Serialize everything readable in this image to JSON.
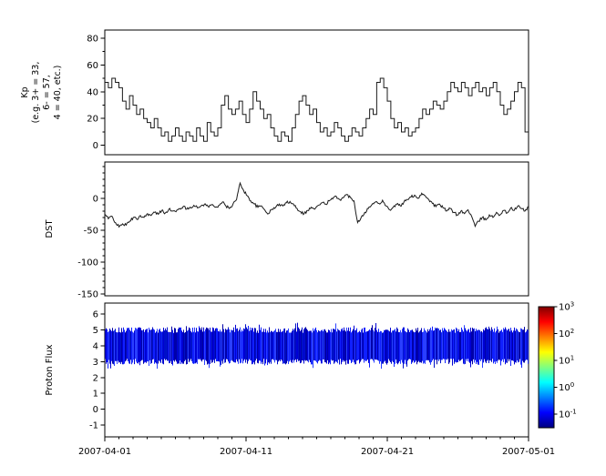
{
  "figure": {
    "background": "#ffffff",
    "axis_color": "#000000",
    "line_color": "#1a1a1a"
  },
  "x_axis": {
    "tick_labels": [
      "2007-04-01",
      "2007-04-11",
      "2007-04-21",
      "2007-05-01"
    ],
    "tick_positions_days": [
      0,
      10,
      20,
      30
    ],
    "span_days": 30,
    "minor_tick_interval_days": 1
  },
  "chart_data": [
    {
      "id": "kp",
      "type": "line",
      "style": "step",
      "ylabel_lines": [
        "Kp",
        "(e.g. 3+ = 33,",
        "6- = 57,",
        "4 = 40, etc.)"
      ],
      "yticks": [
        0,
        20,
        40,
        60,
        80
      ],
      "minor_ytick_interval": 10,
      "ylim": [
        -7,
        86
      ],
      "x_span_days": 30,
      "line_color": "#1a1a1a",
      "values": [
        47,
        43,
        50,
        47,
        43,
        33,
        27,
        37,
        30,
        23,
        27,
        20,
        17,
        13,
        20,
        13,
        7,
        10,
        3,
        7,
        13,
        7,
        3,
        10,
        7,
        3,
        13,
        7,
        3,
        17,
        10,
        7,
        13,
        30,
        37,
        27,
        23,
        27,
        33,
        23,
        17,
        27,
        40,
        33,
        27,
        20,
        23,
        13,
        7,
        3,
        10,
        7,
        3,
        13,
        23,
        33,
        37,
        30,
        23,
        27,
        17,
        10,
        13,
        7,
        10,
        17,
        13,
        7,
        3,
        7,
        13,
        10,
        7,
        13,
        20,
        27,
        23,
        47,
        50,
        43,
        33,
        20,
        13,
        17,
        10,
        13,
        7,
        10,
        13,
        20,
        27,
        23,
        27,
        33,
        30,
        27,
        33,
        40,
        47,
        43,
        40,
        47,
        43,
        37,
        43,
        47,
        40,
        43,
        37,
        43,
        47,
        40,
        30,
        23,
        27,
        33,
        40,
        47,
        43,
        10
      ]
    },
    {
      "id": "dst",
      "type": "line",
      "ylabel": "DST",
      "yticks": [
        0,
        -50,
        -100,
        -150
      ],
      "minor_ytick_interval": 10,
      "ylim": [
        -153,
        57
      ],
      "x_span_days": 30,
      "line_color": "#1a1a1a",
      "values": [
        -25,
        -32,
        -28,
        -38,
        -45,
        -40,
        -42,
        -36,
        -30,
        -33,
        -27,
        -30,
        -24,
        -27,
        -22,
        -25,
        -19,
        -23,
        -17,
        -20,
        -21,
        -16,
        -13,
        -17,
        -14,
        -11,
        -15,
        -12,
        -9,
        -13,
        -10,
        -14,
        -11,
        -6,
        -12,
        -16,
        -9,
        -2,
        24,
        12,
        4,
        -4,
        -9,
        -14,
        -12,
        -19,
        -24,
        -17,
        -14,
        -9,
        -12,
        -7,
        -5,
        -9,
        -16,
        -21,
        -24,
        -19,
        -14,
        -17,
        -11,
        -7,
        -9,
        -4,
        -1,
        3,
        -2,
        1,
        6,
        1,
        -4,
        -38,
        -30,
        -22,
        -16,
        -10,
        -6,
        -8,
        -3,
        -12,
        -18,
        -14,
        -9,
        -12,
        -6,
        -2,
        2,
        5,
        0,
        8,
        4,
        -2,
        -8,
        -13,
        -9,
        -15,
        -20,
        -16,
        -22,
        -26,
        -20,
        -24,
        -18,
        -28,
        -44,
        -36,
        -30,
        -34,
        -26,
        -30,
        -22,
        -26,
        -19,
        -23,
        -15,
        -19,
        -12,
        -16,
        -20,
        -13
      ]
    },
    {
      "id": "proton",
      "type": "heatmap",
      "ylabel": "Proton Flux",
      "yticks": [
        6,
        5,
        4,
        3,
        2,
        1,
        0,
        -1
      ],
      "ylim": [
        -1.75,
        6.7
      ],
      "x_span_days": 30,
      "band": {
        "y_min": 3.0,
        "y_max": 5.0,
        "edge_jitter": 0.18,
        "spike_extra": 0.28,
        "colors": [
          "#0000a8",
          "#0000d4",
          "#1020ff",
          "#2a3fff",
          "#0010c8"
        ]
      },
      "colorbar": {
        "scale": "log",
        "base": "10",
        "tick_exponents": [
          3,
          2,
          1,
          0,
          -1
        ],
        "max_exponent": 3,
        "min_exponent": -1.5,
        "colormap": "jet",
        "gradient_stops_top_to_bottom": [
          {
            "pos": 0.0,
            "color": "#800000"
          },
          {
            "pos": 0.125,
            "color": "#ff0000"
          },
          {
            "pos": 0.375,
            "color": "#ffff00"
          },
          {
            "pos": 0.625,
            "color": "#00ffff"
          },
          {
            "pos": 0.875,
            "color": "#0000ff"
          },
          {
            "pos": 1.0,
            "color": "#000080"
          }
        ]
      }
    }
  ]
}
